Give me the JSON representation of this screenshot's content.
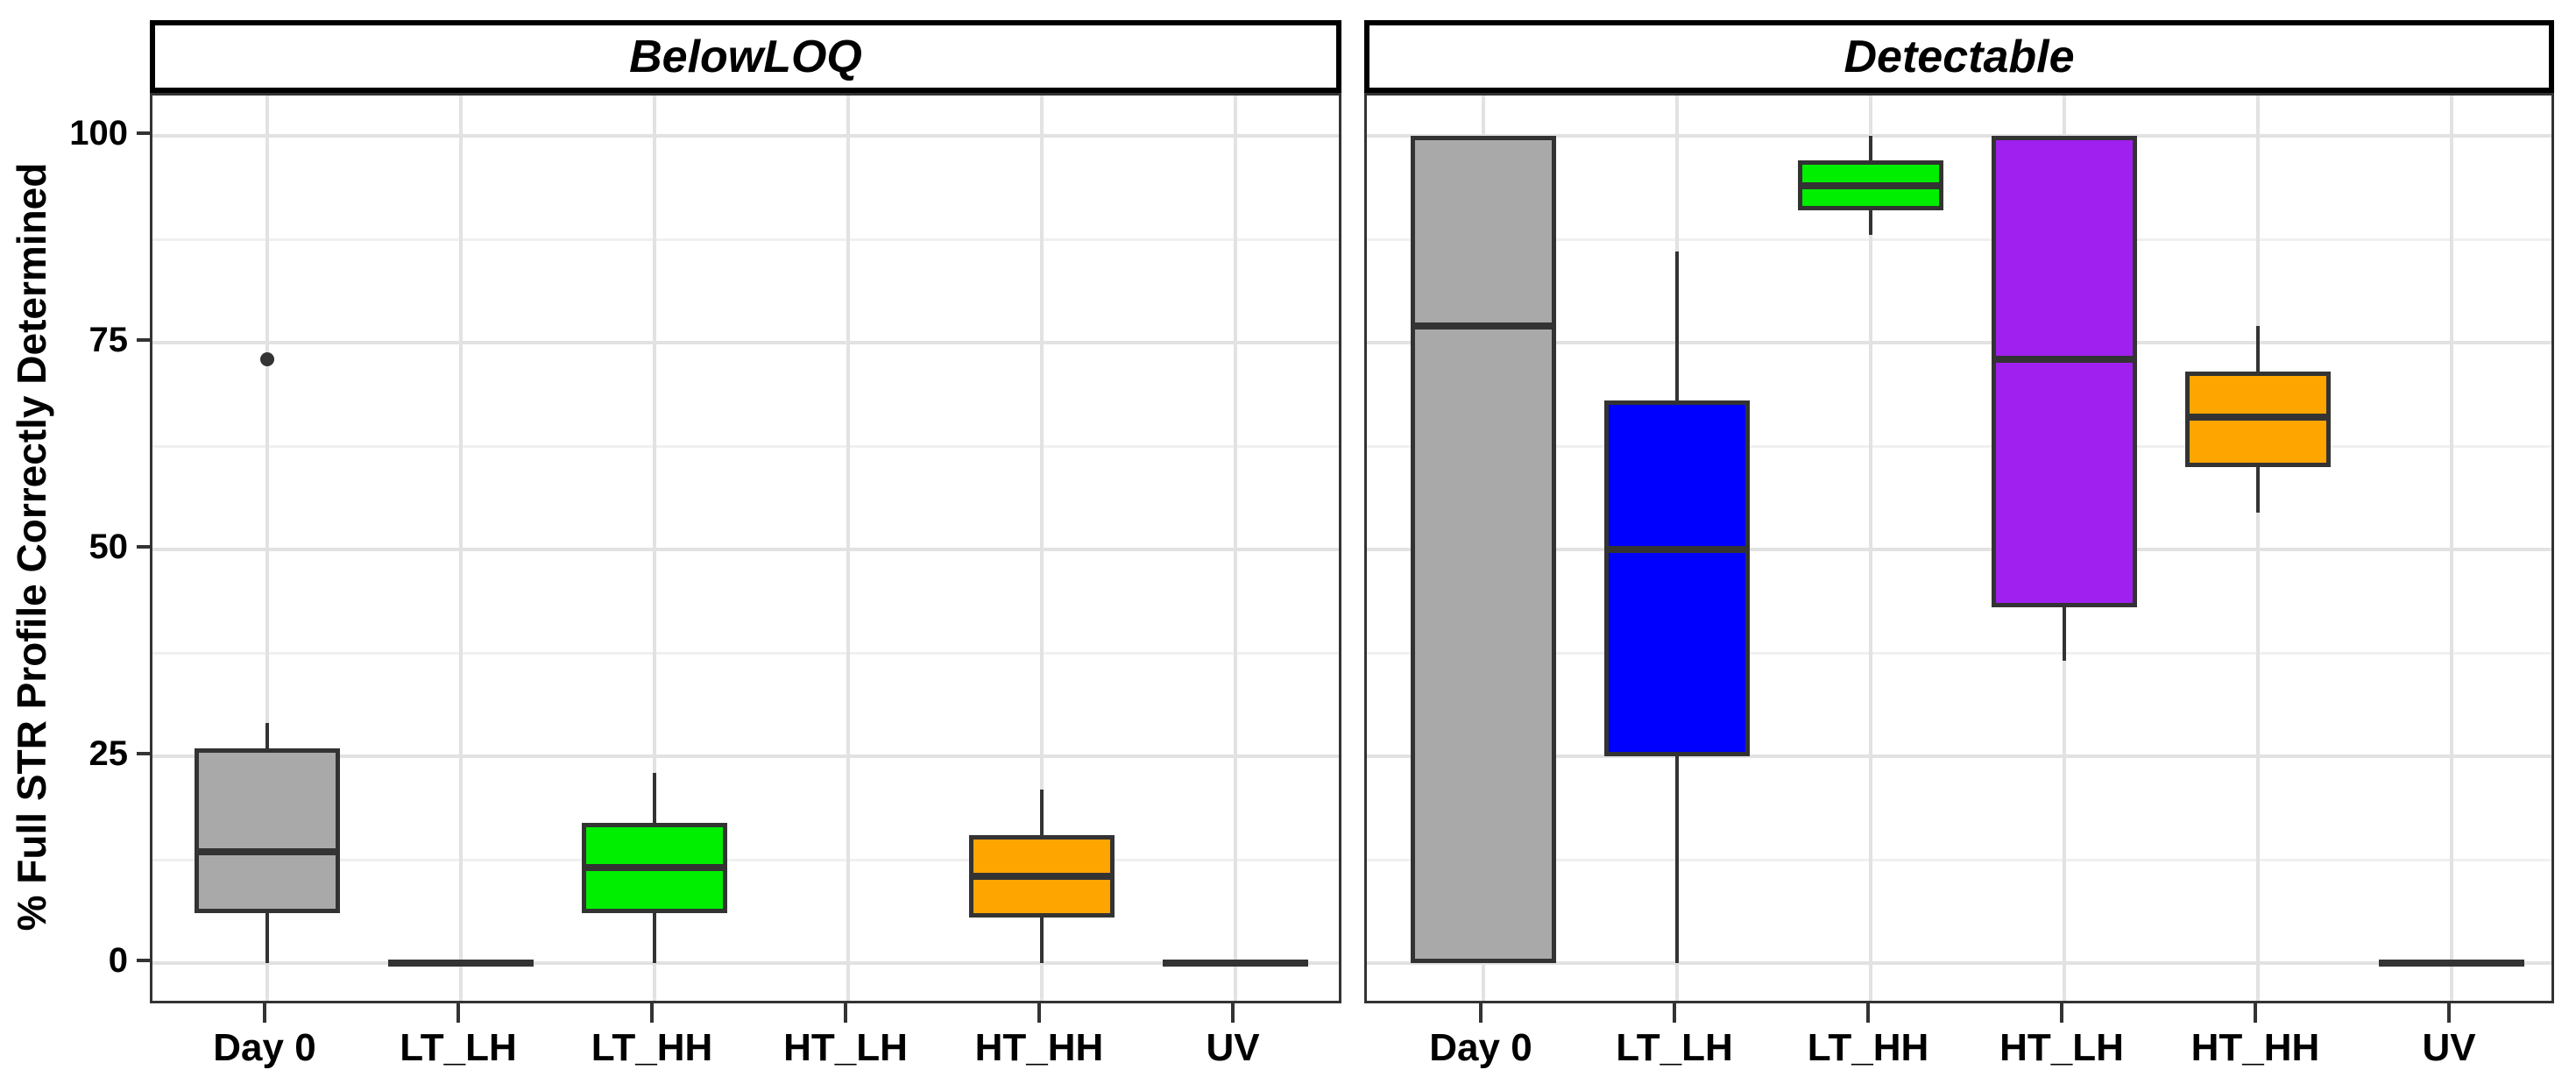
{
  "y_axis": {
    "title": "% Full STR Profile Correctly Determined",
    "tick_labels": [
      "100",
      "75",
      "50",
      "25",
      "0"
    ],
    "tick_values": [
      100,
      75,
      50,
      25,
      0
    ],
    "minor_values": [
      87.5,
      62.5,
      37.5,
      12.5
    ],
    "range": [
      0,
      100
    ]
  },
  "x_categories": [
    "Day 0",
    "LT_LH",
    "LT_HH",
    "HT_LH",
    "HT_HH",
    "UV"
  ],
  "colors": {
    "gray": "#A9A9A9",
    "blue": "#0000FF",
    "green": "#00EE00",
    "purple": "#A020F0",
    "orange": "#FFA500",
    "box_border": "#333333",
    "grid_major": "#E2E2E2",
    "grid_minor": "#F0F0F0",
    "strip_border": "#000000",
    "panel_border": "#333333",
    "text": "#000000",
    "background": "#FFFFFF"
  },
  "chart_data": [
    {
      "type": "box",
      "panel": "BelowLOQ",
      "ylabel": "% Full STR Profile Correctly Determined",
      "ylim": [
        0,
        100
      ],
      "grid": "on",
      "categories": [
        "Day 0",
        "LT_LH",
        "LT_HH",
        "HT_LH",
        "HT_HH",
        "UV"
      ],
      "boxes": [
        {
          "category": "Day 0",
          "fill": "#A9A9A9",
          "low": 0,
          "q1": 6,
          "median": 13.5,
          "q3": 26,
          "high": 29,
          "outliers": [
            73
          ]
        },
        {
          "category": "LT_LH",
          "fill": null,
          "low": 0,
          "q1": 0,
          "median": 0,
          "q3": 0,
          "high": 0,
          "outliers": []
        },
        {
          "category": "LT_HH",
          "fill": "#00EE00",
          "low": 0,
          "q1": 6,
          "median": 11.5,
          "q3": 17,
          "high": 23,
          "outliers": []
        },
        {
          "category": "HT_LH",
          "empty": true
        },
        {
          "category": "HT_HH",
          "fill": "#FFA500",
          "low": 0,
          "q1": 5.5,
          "median": 10.5,
          "q3": 15.5,
          "high": 21,
          "outliers": []
        },
        {
          "category": "UV",
          "fill": null,
          "low": 0,
          "q1": 0,
          "median": 0,
          "q3": 0,
          "high": 0,
          "outliers": []
        }
      ]
    },
    {
      "type": "box",
      "panel": "Detectable",
      "ylabel": "% Full STR Profile Correctly Determined",
      "ylim": [
        0,
        100
      ],
      "grid": "on",
      "categories": [
        "Day 0",
        "LT_LH",
        "LT_HH",
        "HT_LH",
        "HT_HH",
        "UV"
      ],
      "boxes": [
        {
          "category": "Day 0",
          "fill": "#A9A9A9",
          "low": 0,
          "q1": 0,
          "median": 77,
          "q3": 100,
          "high": 100,
          "outliers": []
        },
        {
          "category": "LT_LH",
          "fill": "#0000FF",
          "low": 0,
          "q1": 25,
          "median": 50,
          "q3": 68,
          "high": 86,
          "outliers": []
        },
        {
          "category": "LT_HH",
          "fill": "#00EE00",
          "low": 88,
          "q1": 91,
          "median": 94,
          "q3": 97,
          "high": 100,
          "outliers": []
        },
        {
          "category": "HT_LH",
          "fill": "#A020F0",
          "low": 36.5,
          "q1": 43,
          "median": 73,
          "q3": 100,
          "high": 100,
          "outliers": []
        },
        {
          "category": "HT_HH",
          "fill": "#FFA500",
          "low": 54.5,
          "q1": 60,
          "median": 66,
          "q3": 71.5,
          "high": 77,
          "outliers": []
        },
        {
          "category": "UV",
          "fill": null,
          "low": 0,
          "q1": 0,
          "median": 0,
          "q3": 0,
          "high": 0,
          "outliers": []
        }
      ]
    }
  ]
}
